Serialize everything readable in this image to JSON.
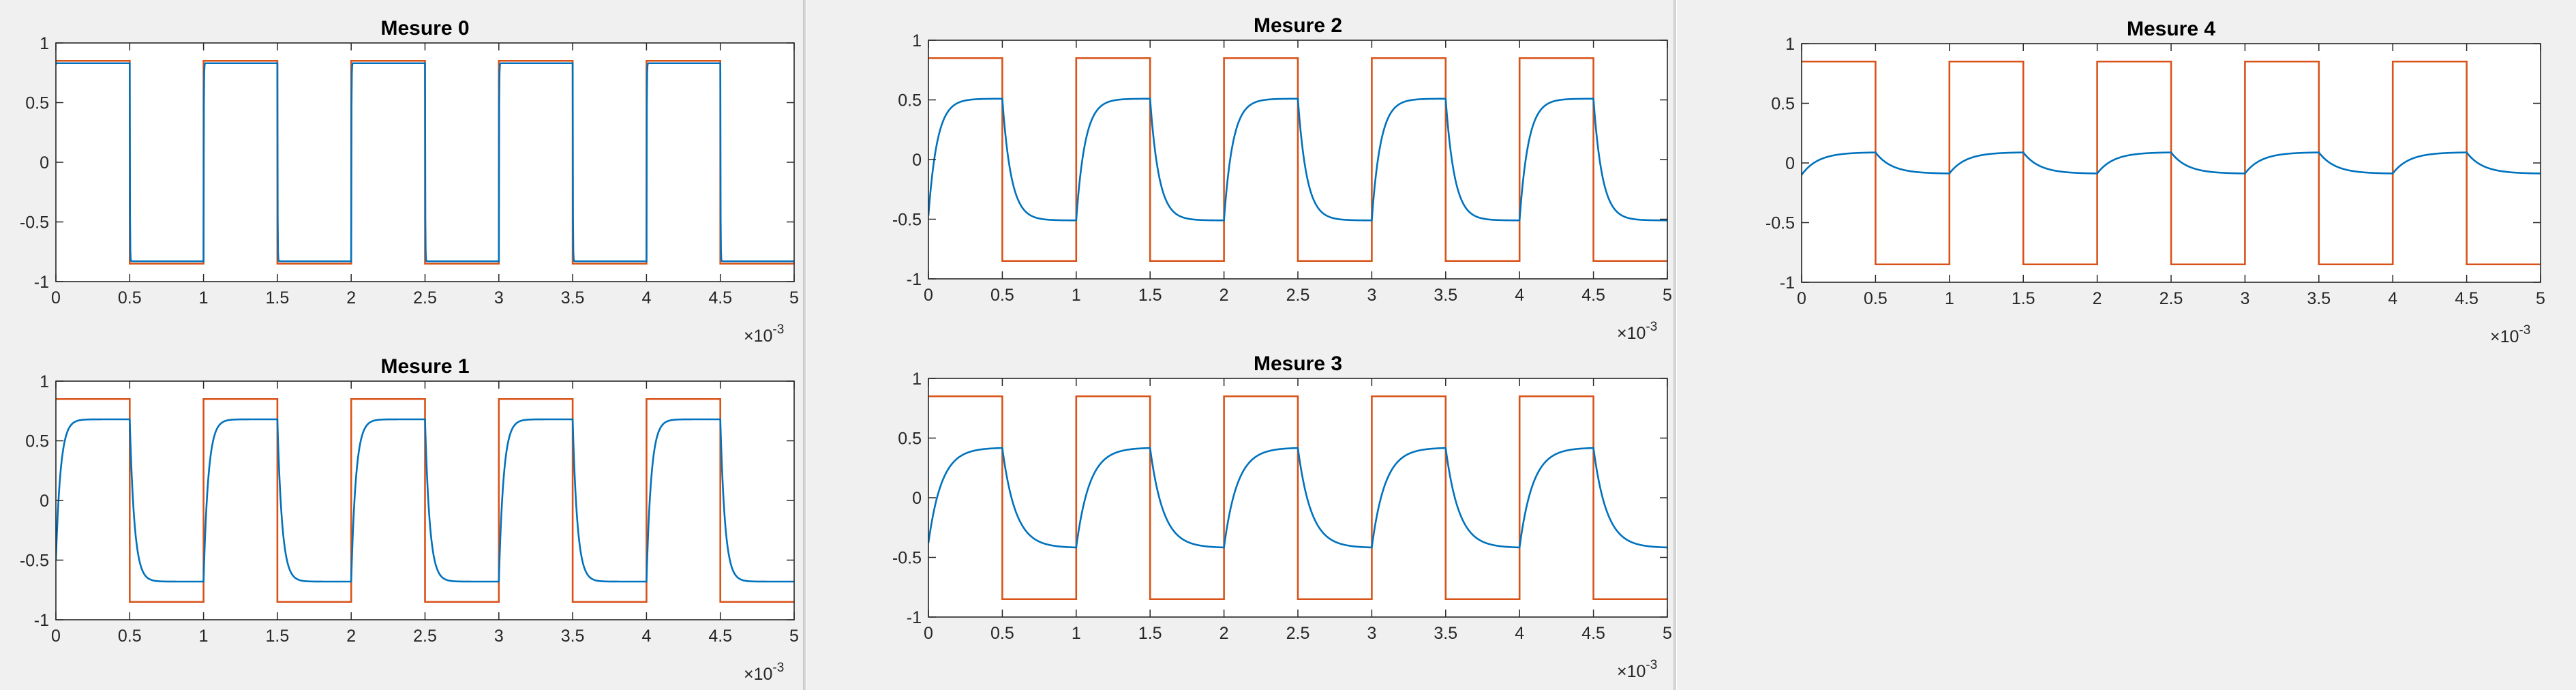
{
  "colors": {
    "input_square": "#d95319",
    "response": "#0072bd",
    "axes": "#262626",
    "background": "#f0f0f0"
  },
  "exponent_label": {
    "base": "×10",
    "power": "-3"
  },
  "chart_data": [
    {
      "type": "line",
      "title": "Mesure 0",
      "xlim": [
        0,
        0.005
      ],
      "ylim": [
        -1,
        1
      ],
      "xticks": [
        "0",
        "0.5",
        "1",
        "1.5",
        "2",
        "2.5",
        "3",
        "3.5",
        "4",
        "4.5",
        "5"
      ],
      "yticks": [
        "-1",
        "-0.5",
        "0",
        "0.5",
        "1"
      ],
      "period": 0.001,
      "series": [
        {
          "kind": "square",
          "amplitude": 0.85
        },
        {
          "kind": "rc_response",
          "amplitude": 0.83,
          "tau": 1.5e-06,
          "start": 0.82
        }
      ]
    },
    {
      "type": "line",
      "title": "Mesure 1",
      "xlim": [
        0,
        0.005
      ],
      "ylim": [
        -1,
        1
      ],
      "xticks": [
        "0",
        "0.5",
        "1",
        "1.5",
        "2",
        "2.5",
        "3",
        "3.5",
        "4",
        "4.5",
        "5"
      ],
      "yticks": [
        "-1",
        "-0.5",
        "0",
        "0.5",
        "1"
      ],
      "period": 0.001,
      "series": [
        {
          "kind": "square",
          "amplitude": 0.85
        },
        {
          "kind": "rc_response",
          "amplitude": 0.68,
          "tau": 3.2e-05,
          "start": -0.5
        }
      ]
    },
    {
      "type": "line",
      "title": "Mesure 2",
      "xlim": [
        0,
        0.005
      ],
      "ylim": [
        -1,
        1
      ],
      "xticks": [
        "0",
        "0.5",
        "1",
        "1.5",
        "2",
        "2.5",
        "3",
        "3.5",
        "4",
        "4.5",
        "5"
      ],
      "yticks": [
        "-1",
        "-0.5",
        "0",
        "0.5",
        "1"
      ],
      "period": 0.001,
      "series": [
        {
          "kind": "square",
          "amplitude": 0.85
        },
        {
          "kind": "rc_response",
          "amplitude": 0.51,
          "tau": 6e-05,
          "start": -0.47
        }
      ]
    },
    {
      "type": "line",
      "title": "Mesure 3",
      "xlim": [
        0,
        0.005
      ],
      "ylim": [
        -1,
        1
      ],
      "xticks": [
        "0",
        "0.5",
        "1",
        "1.5",
        "2",
        "2.5",
        "3",
        "3.5",
        "4",
        "4.5",
        "5"
      ],
      "yticks": [
        "-1",
        "-0.5",
        "0",
        "0.5",
        "1"
      ],
      "period": 0.001,
      "series": [
        {
          "kind": "square",
          "amplitude": 0.85
        },
        {
          "kind": "rc_response",
          "amplitude": 0.42,
          "tau": 9e-05,
          "start": -0.38
        }
      ]
    },
    {
      "type": "line",
      "title": "Mesure 4",
      "xlim": [
        0,
        0.005
      ],
      "ylim": [
        -1,
        1
      ],
      "xticks": [
        "0",
        "0.5",
        "1",
        "1.5",
        "2",
        "2.5",
        "3",
        "3.5",
        "4",
        "4.5",
        "5"
      ],
      "yticks": [
        "-1",
        "-0.5",
        "0",
        "0.5",
        "1"
      ],
      "period": 0.001,
      "series": [
        {
          "kind": "square",
          "amplitude": 0.85
        },
        {
          "kind": "rc_response",
          "amplitude": 0.09,
          "tau": 0.00011,
          "start": -0.1
        }
      ]
    }
  ]
}
